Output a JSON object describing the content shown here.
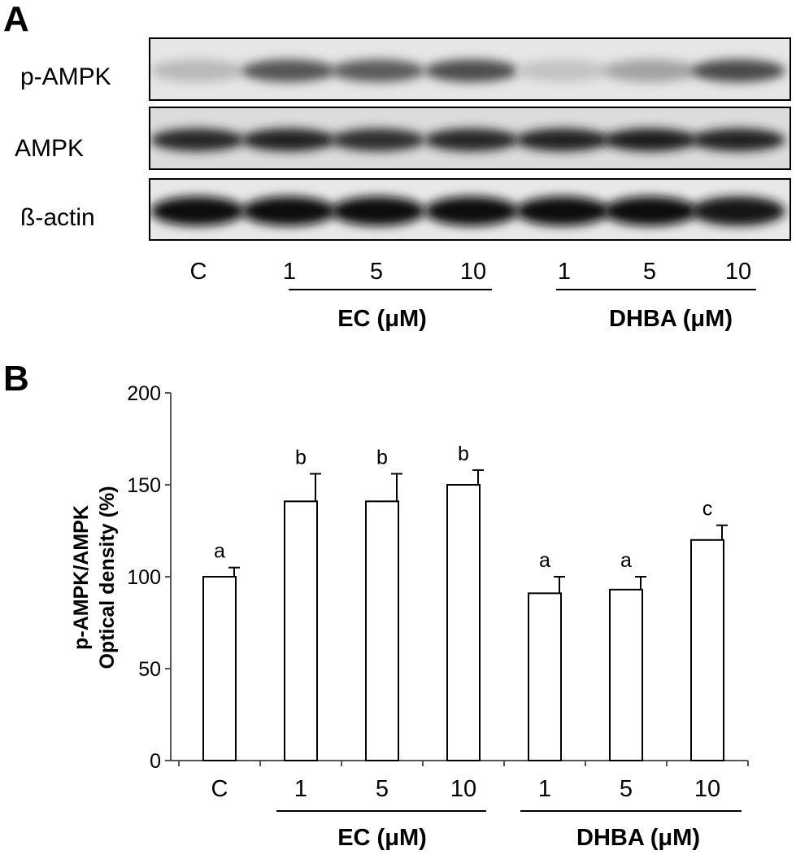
{
  "panel_a": {
    "letter": "A",
    "blot_rows": [
      {
        "label": "p-AMPK",
        "band_darkness": [
          0.2,
          0.65,
          0.62,
          0.68,
          0.15,
          0.3,
          0.7
        ]
      },
      {
        "label": "AMPK",
        "band_darkness": [
          0.85,
          0.88,
          0.82,
          0.86,
          0.88,
          0.9,
          0.88
        ]
      },
      {
        "label": "ß-actin",
        "band_darkness": [
          0.97,
          0.95,
          0.95,
          0.96,
          0.97,
          0.95,
          0.93
        ]
      }
    ],
    "lane_labels": [
      "C",
      "1",
      "5",
      "10",
      "1",
      "5",
      "10"
    ],
    "groups": [
      {
        "label": "EC (μM)"
      },
      {
        "label": "DHBA (μM)"
      }
    ]
  },
  "panel_b": {
    "letter": "B",
    "group_labels": [
      "EC (μM)",
      "DHBA (μM)"
    ]
  },
  "chart_data": {
    "type": "bar",
    "categories": [
      "C",
      "1",
      "5",
      "10",
      "1",
      "5",
      "10"
    ],
    "values": [
      100,
      141,
      141,
      150,
      91,
      93,
      120
    ],
    "errors": [
      5,
      15,
      15,
      8,
      9,
      7,
      8
    ],
    "significance_letters": [
      "a",
      "b",
      "b",
      "b",
      "a",
      "a",
      "c"
    ],
    "ylabel_line1": "p-AMPK/AMPK",
    "ylabel_line2": "Optical density (%)",
    "ylim": [
      0,
      200
    ],
    "yticks": [
      0,
      50,
      100,
      150,
      200
    ],
    "grid": false,
    "bar_fill": "#ffffff",
    "bar_stroke": "#000000"
  }
}
